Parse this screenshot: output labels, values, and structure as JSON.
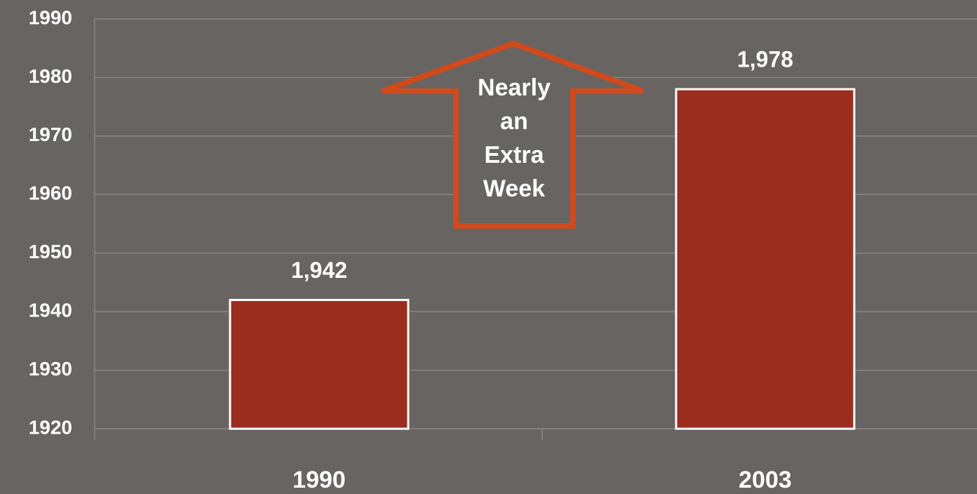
{
  "chart_data": {
    "type": "bar",
    "categories": [
      "1990",
      "2003"
    ],
    "values": [
      1942,
      1978
    ],
    "value_labels": [
      "1,942",
      "1,978"
    ],
    "color": "#9b2d1f",
    "ylim": [
      1920,
      1990
    ],
    "yticks": [
      1920,
      1930,
      1940,
      1950,
      1960,
      1970,
      1980,
      1990
    ],
    "grid": true,
    "annotation": "Nearly an Extra Week"
  }
}
